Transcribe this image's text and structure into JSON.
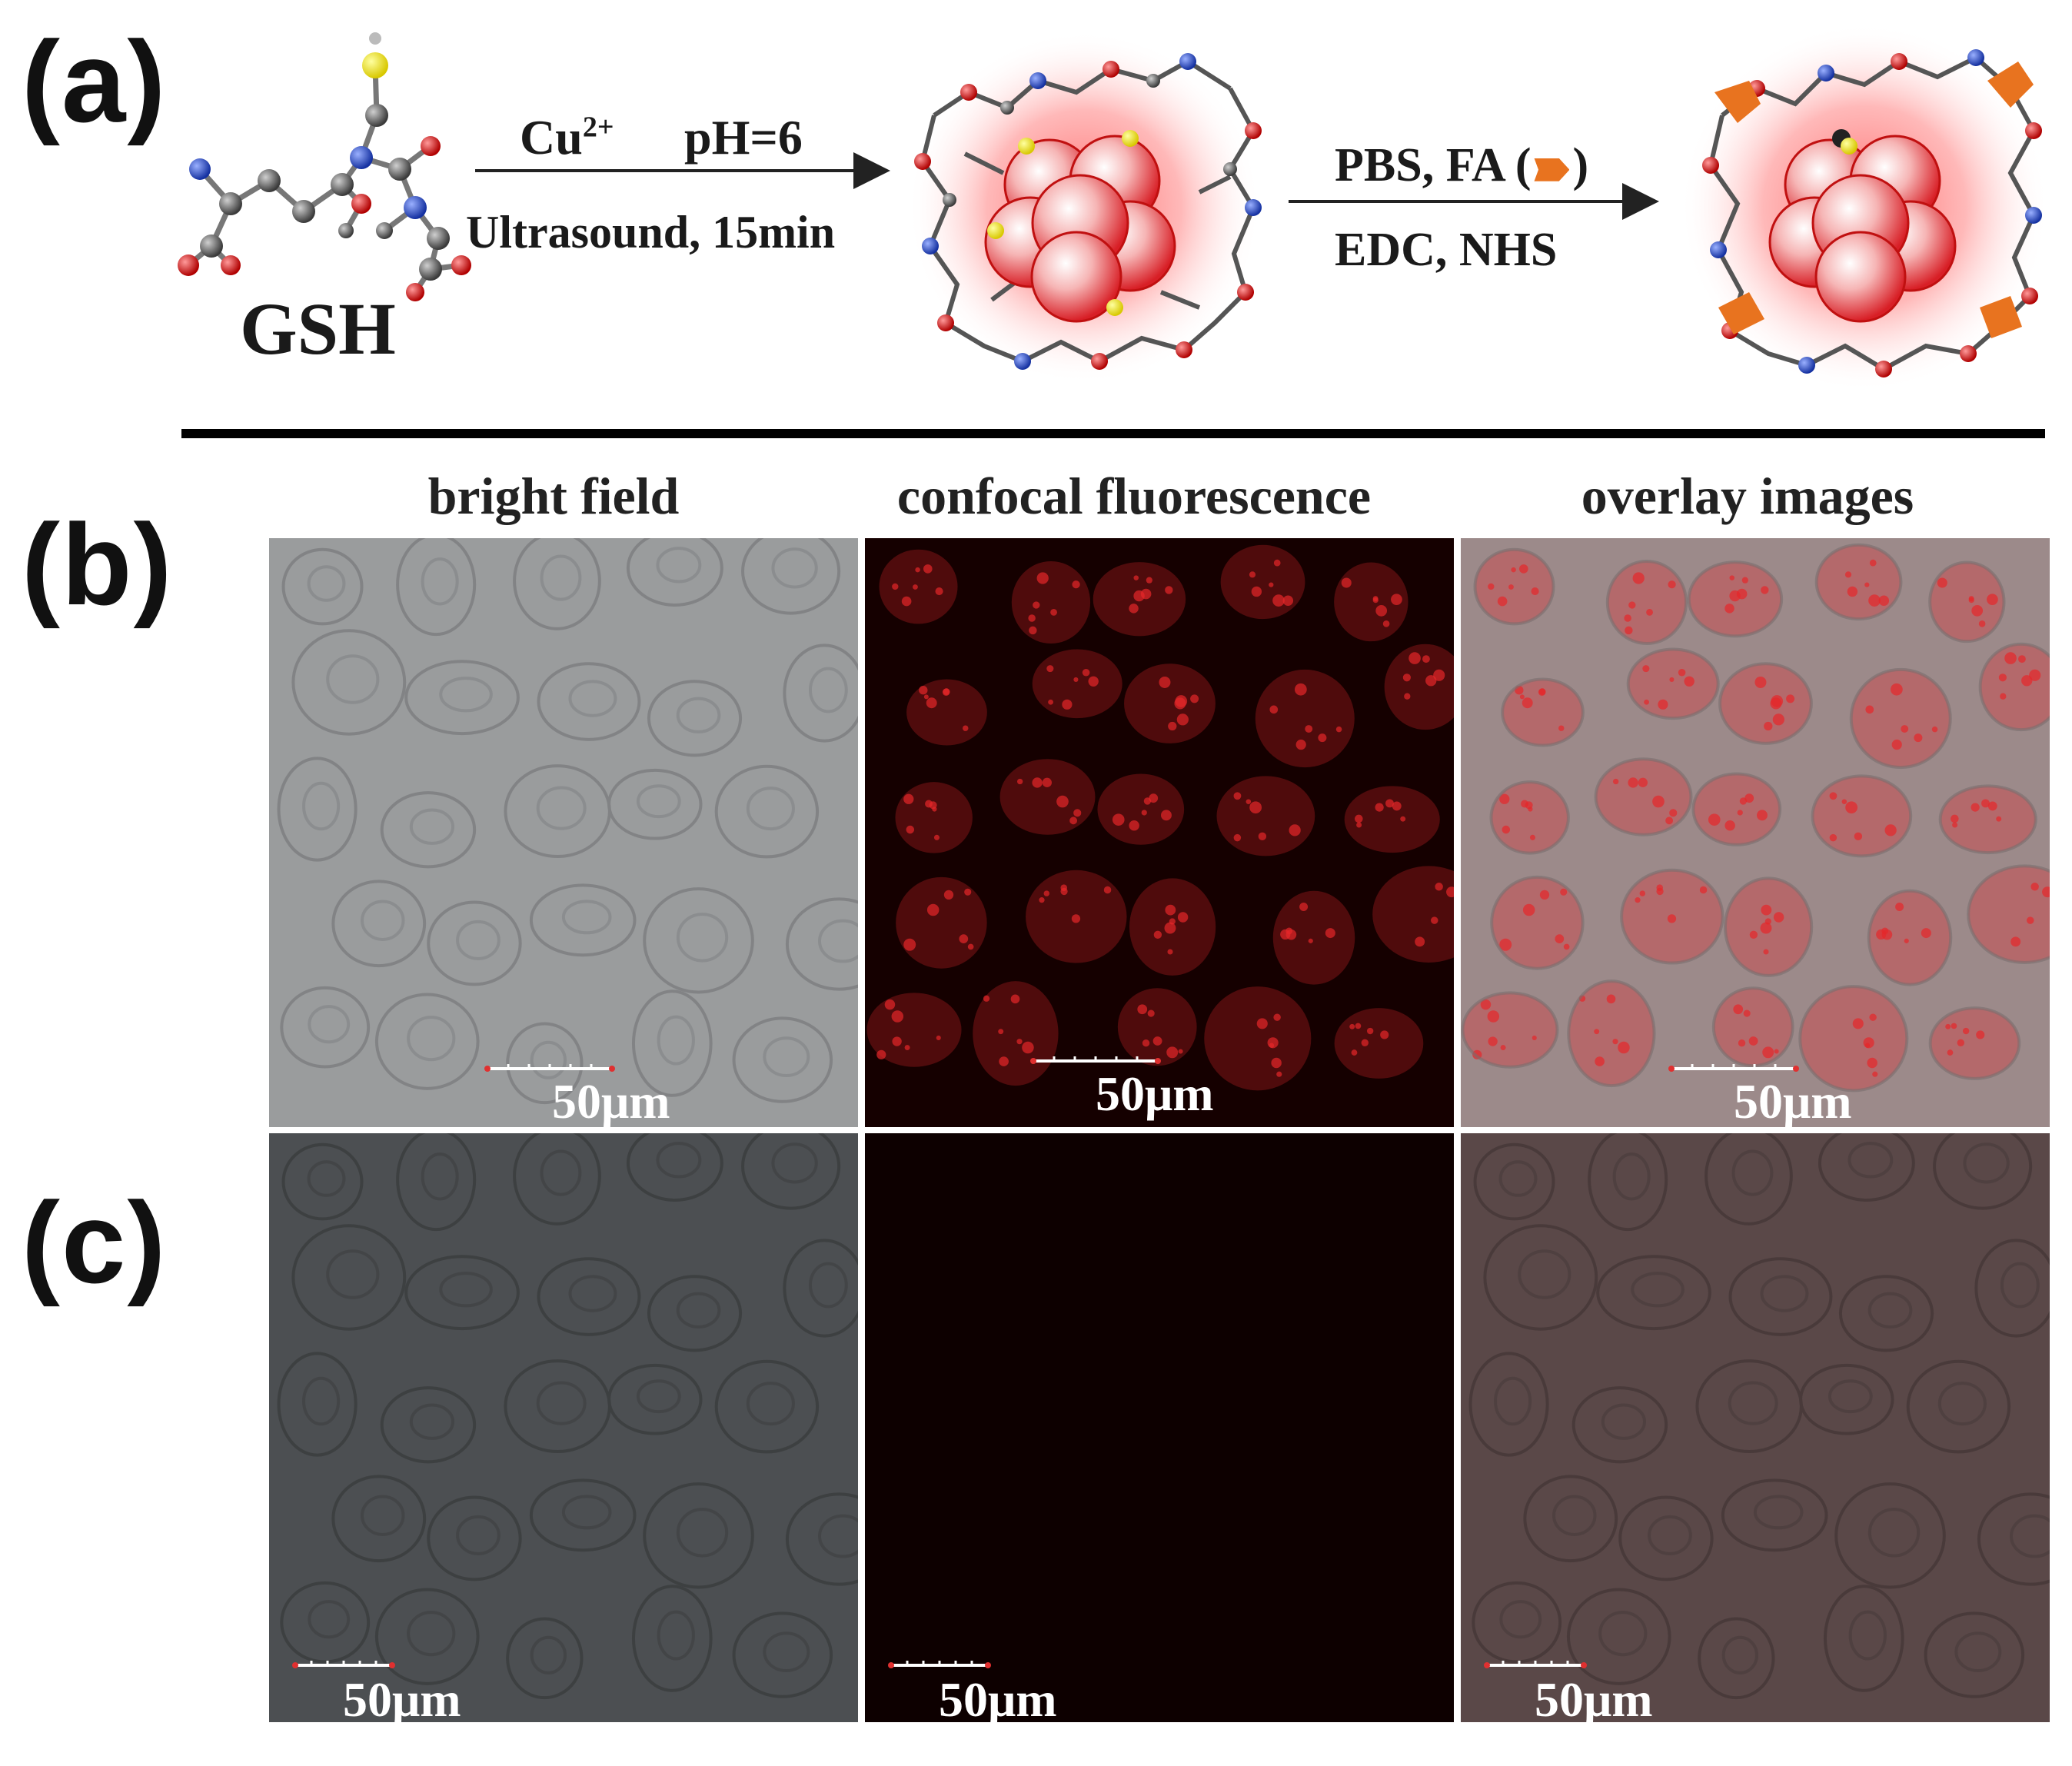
{
  "panels": {
    "a_label": "(a)",
    "b_label": "(b)",
    "c_label": "(c)"
  },
  "scheme": {
    "reagent_label": "GSH",
    "step1": {
      "above_left": "Cu",
      "above_sup": "2+",
      "above_right": "pH=6",
      "below": "Ultrasound, 15min"
    },
    "step2": {
      "above_left": "PBS, FA (",
      "above_right": ")",
      "below": "EDC,   NHS"
    }
  },
  "columns": [
    "bright field",
    "confocal fluorescence",
    "overlay images"
  ],
  "scale_label": "50μm",
  "colors": {
    "bright_b": "#9a9c9d",
    "fluor_b": "#150000",
    "overlay_b": "#9c8a8a",
    "bright_c": "#4c4f52",
    "fluor_c": "#0d0000",
    "overlay_c": "#5a4848",
    "fluor_red": "#e6262a",
    "fa_orange": "#e8731f"
  }
}
